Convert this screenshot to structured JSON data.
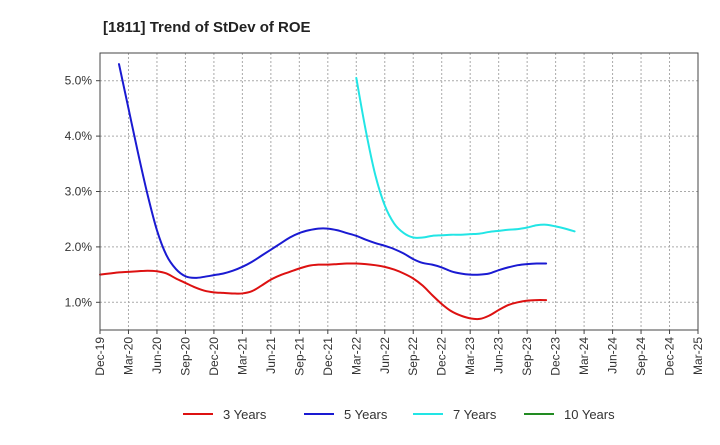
{
  "chart_data": {
    "type": "line",
    "title": "[1811]  Trend of StDev of ROE",
    "xlabel": "",
    "ylabel": "",
    "grid": true,
    "legend_placement": "bottom",
    "y_ticks": [
      "1.0%",
      "2.0%",
      "3.0%",
      "4.0%",
      "5.0%"
    ],
    "y_tick_values": [
      1.0,
      2.0,
      3.0,
      4.0,
      5.0
    ],
    "ylim": [
      0.5,
      5.5
    ],
    "x_ticks": [
      "Dec-19",
      "Mar-20",
      "Jun-20",
      "Sep-20",
      "Dec-20",
      "Mar-21",
      "Jun-21",
      "Sep-21",
      "Dec-21",
      "Mar-22",
      "Jun-22",
      "Sep-22",
      "Dec-22",
      "Mar-23",
      "Jun-23",
      "Sep-23",
      "Dec-23",
      "Mar-24",
      "Jun-24",
      "Sep-24",
      "Dec-24",
      "Mar-25"
    ],
    "series": [
      {
        "name": "3 Years",
        "color": "#dd1111",
        "start_index": 0,
        "values": [
          1.5,
          1.52,
          1.54,
          1.55,
          1.56,
          1.57,
          1.56,
          1.52,
          1.43,
          1.35,
          1.27,
          1.21,
          1.18,
          1.17,
          1.16,
          1.16,
          1.2,
          1.3,
          1.41,
          1.49,
          1.55,
          1.61,
          1.66,
          1.68,
          1.68,
          1.69,
          1.7,
          1.7,
          1.69,
          1.67,
          1.64,
          1.59,
          1.52,
          1.43,
          1.3,
          1.13,
          0.97,
          0.84,
          0.76,
          0.71,
          0.7,
          0.76,
          0.86,
          0.95,
          1.0,
          1.03,
          1.04,
          1.04
        ]
      },
      {
        "name": "5 Years",
        "color": "#1a1ad2",
        "start_index": 2,
        "values": [
          5.3,
          4.5,
          3.7,
          2.95,
          2.3,
          1.85,
          1.6,
          1.47,
          1.44,
          1.46,
          1.49,
          1.52,
          1.57,
          1.64,
          1.73,
          1.84,
          1.95,
          2.06,
          2.17,
          2.25,
          2.3,
          2.33,
          2.33,
          2.3,
          2.25,
          2.2,
          2.13,
          2.07,
          2.02,
          1.96,
          1.88,
          1.78,
          1.71,
          1.68,
          1.63,
          1.56,
          1.52,
          1.5,
          1.5,
          1.52,
          1.58,
          1.63,
          1.67,
          1.69,
          1.7,
          1.7
        ]
      },
      {
        "name": "7 Years",
        "color": "#22e5e5",
        "start_index": 27,
        "values": [
          5.05,
          4.1,
          3.3,
          2.75,
          2.42,
          2.25,
          2.17,
          2.17,
          2.2,
          2.21,
          2.22,
          2.22,
          2.23,
          2.24,
          2.27,
          2.29,
          2.31,
          2.32,
          2.35,
          2.39,
          2.4,
          2.37,
          2.33,
          2.28
        ]
      },
      {
        "name": "10 Years",
        "color": "#228b22",
        "start_index": 0,
        "values": []
      }
    ]
  }
}
